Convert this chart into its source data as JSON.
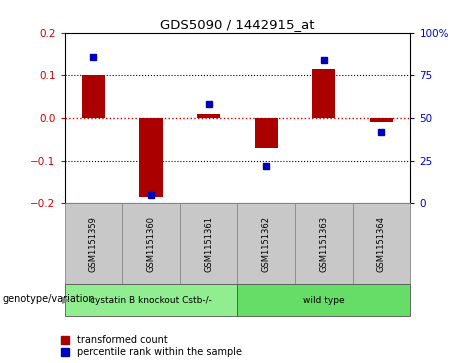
{
  "title": "GDS5090 / 1442915_at",
  "samples": [
    "GSM1151359",
    "GSM1151360",
    "GSM1151361",
    "GSM1151362",
    "GSM1151363",
    "GSM1151364"
  ],
  "red_bars": [
    0.1,
    -0.185,
    0.01,
    -0.07,
    0.115,
    -0.01
  ],
  "blue_dots_pct": [
    86,
    5,
    58,
    22,
    84,
    42
  ],
  "ylim_left": [
    -0.2,
    0.2
  ],
  "ylim_right": [
    0,
    100
  ],
  "groups": [
    {
      "label": "cystatin B knockout Cstb-/-",
      "start": 0,
      "end": 2,
      "color": "#90EE90"
    },
    {
      "label": "wild type",
      "start": 3,
      "end": 5,
      "color": "#66DD66"
    }
  ],
  "red_color": "#AA0000",
  "blue_color": "#0000BB",
  "legend_red": "transformed count",
  "legend_blue": "percentile rank within the sample",
  "xlabel_genotype": "genotype/variation",
  "background_color": "#ffffff",
  "tick_color_left": "#CC0000",
  "tick_color_right": "#0000CC",
  "zero_line_color": "#CC0000",
  "dotted_line_color": "#000000",
  "group_bg": "#C8C8C8",
  "bar_width": 0.4
}
